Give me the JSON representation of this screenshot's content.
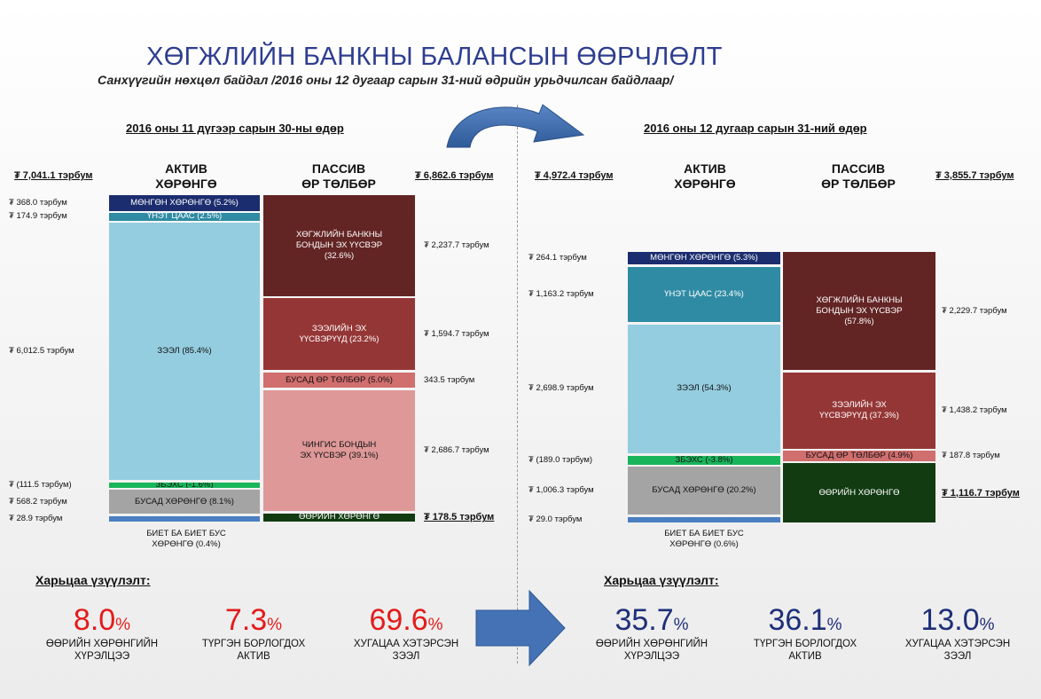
{
  "title": "ХӨГЖЛИЙН БАНКНЫ БАЛАНСЫН ӨӨРЧЛӨЛТ",
  "subtitle": "Санхүүгийн нөхцөл байдал /2016 оны 12 дугаар сарын 31-ний өдрийн урьдчилсан байдлаар/",
  "ratios_heading": "Харьцаа үзүүлэлт:",
  "chart_data": [
    {
      "type": "bar",
      "subtype": "stacked-balance-sheet",
      "title": "2016 оны 11 дүгээр сарын 30-ны өдөр",
      "assets": {
        "header": [
          "АКТИВ",
          "ХӨРӨНГӨ"
        ],
        "total": "₮ 7,041.1 тэрбум",
        "segments": [
          {
            "label": "МӨНГӨН ХӨРӨНГӨ (5.2%)",
            "amount": "₮ 368.0 тэрбум",
            "value": 368.0,
            "color": "#1b2d6e",
            "text": "white"
          },
          {
            "label": "ҮНЭТ ЦААС (2.5%)",
            "amount": "₮ 174.9 тэрбум",
            "value": 174.9,
            "color": "#2f8ba3",
            "text": "white"
          },
          {
            "label": "ЗЭЭЛ (85.4%)",
            "amount": "₮ 6,012.5 тэрбум",
            "value": 6012.5,
            "color": "#94cde0",
            "text": "dark"
          },
          {
            "label": "ЗБЭХС (-1.6%)",
            "amount": "₮ (111.5 тэрбум)",
            "value": -111.5,
            "color": "#19b55b",
            "text": "dark"
          },
          {
            "label": "БУСАД ХӨРӨНГӨ (8.1%)",
            "amount": "₮ 568.2 тэрбум",
            "value": 568.2,
            "color": "#a4a4a4",
            "text": "dark"
          },
          {
            "label": "",
            "amount": "₮ 28.9 тэрбум",
            "value": 28.9,
            "color": "#4a7fc1",
            "text": "dark"
          }
        ],
        "below_label": "БИЕТ БА БИЕТ БУС\nХӨРӨНГӨ (0.4%)"
      },
      "liabilities": {
        "header": [
          "ПАССИВ",
          "ӨР ТӨЛБӨР"
        ],
        "total": "₮ 6,862.6 тэрбум",
        "segments": [
          {
            "label": "ХӨГЖЛИЙН БАНКНЫ\nБОНДЫН ЭХ ҮҮСВЭР\n(32.6%)",
            "amount": "₮ 2,237.7 тэрбум",
            "value": 2237.7,
            "color": "#632424",
            "text": "white"
          },
          {
            "label": "ЗЭЭЛИЙН ЭХ\nҮҮСВЭРҮҮД (23.2%)",
            "amount": "₮ 1,594.7 тэрбум",
            "value": 1594.7,
            "color": "#953636",
            "text": "white"
          },
          {
            "label": "БУСАД ӨР ТӨЛБӨР (5.0%)",
            "amount": "343.5 тэрбум",
            "value": 343.5,
            "color": "#d16e6e",
            "text": "dark"
          },
          {
            "label": "ЧИНГИС БОНДЫН\nЭХ ҮҮСВЭР (39.1%)",
            "amount": "₮ 2,686.7 тэрбум",
            "value": 2686.7,
            "color": "#de9898",
            "text": "dark"
          },
          {
            "label": "ӨӨРИЙН ХӨРӨНГӨ",
            "amount": "₮ 178.5 тэрбум",
            "value": 178.5,
            "color": "#123b12",
            "text": "white"
          }
        ]
      }
    },
    {
      "type": "bar",
      "subtype": "stacked-balance-sheet",
      "title": "2016 оны 12 дугаар сарын 31-ний өдөр",
      "assets": {
        "header": [
          "АКТИВ",
          "ХӨРӨНГӨ"
        ],
        "total": "₮ 4,972.4 тэрбум",
        "segments": [
          {
            "label": "МӨНГӨН ХӨРӨНГӨ (5.3%)",
            "amount": "₮ 264.1 тэрбум",
            "value": 264.1,
            "color": "#1b2d6e",
            "text": "white"
          },
          {
            "label": "ҮНЭТ ЦААС (23.4%)",
            "amount": "₮ 1,163.2 тэрбум",
            "value": 1163.2,
            "color": "#2f8ba3",
            "text": "white"
          },
          {
            "label": "ЗЭЭЛ (54.3%)",
            "amount": "₮ 2,698.9 тэрбум",
            "value": 2698.9,
            "color": "#94cde0",
            "text": "dark"
          },
          {
            "label": "ЗБЭХС (-3.8%)",
            "amount": "₮ (189.0 тэрбум)",
            "value": -189.0,
            "color": "#19b55b",
            "text": "dark"
          },
          {
            "label": "БУСАД ХӨРӨНГӨ (20.2%)",
            "amount": "₮ 1,006.3 тэрбум",
            "value": 1006.3,
            "color": "#a4a4a4",
            "text": "dark"
          },
          {
            "label": "",
            "amount": "₮ 29.0 тэрбум",
            "value": 29.0,
            "color": "#4a7fc1",
            "text": "dark"
          }
        ],
        "below_label": "БИЕТ БА БИЕТ БУС\nХӨРӨНГӨ (0.6%)"
      },
      "liabilities": {
        "header": [
          "ПАССИВ",
          "ӨР ТӨЛБӨР"
        ],
        "total": "₮ 3,855.7 тэрбум",
        "segments": [
          {
            "label": "ХӨГЖЛИЙН БАНКНЫ\nБОНДЫН ЭХ ҮҮСВЭР\n(57.8%)",
            "amount": "₮ 2,229.7 тэрбум",
            "value": 2229.7,
            "color": "#632424",
            "text": "white"
          },
          {
            "label": "ЗЭЭЛИЙН ЭХ\nҮҮСВЭРҮҮД (37.3%)",
            "amount": "₮ 1,438.2 тэрбум",
            "value": 1438.2,
            "color": "#953636",
            "text": "white"
          },
          {
            "label": "БУСАД ӨР ТӨЛБӨР (4.9%)",
            "amount": "₮ 187.8 тэрбум",
            "value": 187.8,
            "color": "#d16e6e",
            "text": "dark"
          },
          {
            "label": "ӨӨРИЙН ХӨРӨНГӨ",
            "amount": "₮ 1,116.7 тэрбум",
            "value": 1116.7,
            "color": "#123b12",
            "text": "white"
          }
        ]
      }
    }
  ],
  "ratios": {
    "before": [
      {
        "value": "8.0",
        "unit": "%",
        "label": "ӨӨРИЙН ХӨРӨНГИЙН\nХҮРЭЛЦЭЭ"
      },
      {
        "value": "7.3",
        "unit": "%",
        "label": "ТҮРГЭН БОРЛОГДОХ\nАКТИВ"
      },
      {
        "value": "69.6",
        "unit": "%",
        "label": "ХУГАЦАА ХЭТЭРСЭН\nЗЭЭЛ"
      }
    ],
    "after": [
      {
        "value": "35.7",
        "unit": "%",
        "label": "ӨӨРИЙН ХӨРӨНГИЙН\nХҮРЭЛЦЭЭ"
      },
      {
        "value": "36.1",
        "unit": "%",
        "label": "ТҮРГЭН БОРЛОГДОХ\nАКТИВ"
      },
      {
        "value": "13.0",
        "unit": "%",
        "label": "ХУГАЦАА ХЭТЭРСЭН\nЗЭЭЛ"
      }
    ]
  },
  "colors": {
    "title": "#2e3d8f",
    "ratio_before": "#e41b1b",
    "ratio_after": "#1f2f79",
    "arrow": "#4472b4"
  }
}
